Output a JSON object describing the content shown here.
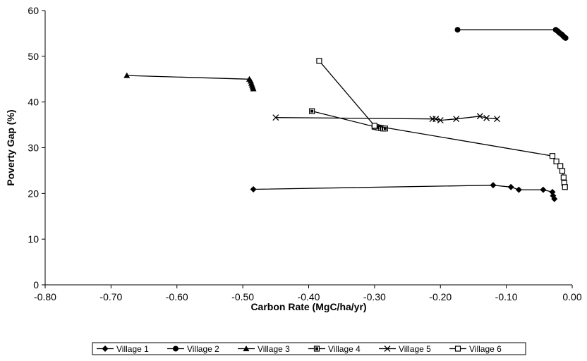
{
  "chart_data": {
    "type": "scatter",
    "title": "",
    "xlabel": "Carbon Rate (MgC/ha/yr)",
    "ylabel": "Poverty Gap (%)",
    "xlim": [
      -0.8,
      0.0
    ],
    "ylim": [
      0,
      60
    ],
    "xticks": [
      -0.8,
      -0.7,
      -0.6,
      -0.5,
      -0.4,
      -0.3,
      -0.2,
      -0.1,
      0.0
    ],
    "xtick_labels": [
      "-0.80",
      "-0.70",
      "-0.60",
      "-0.50",
      "-0.40",
      "-0.30",
      "-0.20",
      "-0.10",
      "0.00"
    ],
    "yticks": [
      0,
      10,
      20,
      30,
      40,
      50,
      60
    ],
    "ytick_labels": [
      "0",
      "10",
      "20",
      "30",
      "40",
      "50",
      "60"
    ],
    "grid": false,
    "legend_position": "bottom",
    "series": [
      {
        "name": "Village 1",
        "marker": "diamond",
        "points": [
          [
            -0.484,
            20.9
          ],
          [
            -0.12,
            21.8
          ],
          [
            -0.093,
            21.4
          ],
          [
            -0.081,
            20.8
          ],
          [
            -0.044,
            20.8
          ],
          [
            -0.03,
            20.3
          ],
          [
            -0.029,
            19.5
          ],
          [
            -0.027,
            18.8
          ]
        ]
      },
      {
        "name": "Village 2",
        "marker": "circle",
        "points": [
          [
            -0.174,
            55.8
          ],
          [
            -0.025,
            55.8
          ],
          [
            -0.022,
            55.5
          ],
          [
            -0.019,
            55.1
          ],
          [
            -0.016,
            54.8
          ],
          [
            -0.014,
            54.5
          ],
          [
            -0.012,
            54.2
          ],
          [
            -0.01,
            54.0
          ]
        ]
      },
      {
        "name": "Village 3",
        "marker": "triangle",
        "points": [
          [
            -0.676,
            45.8
          ],
          [
            -0.49,
            45.0
          ],
          [
            -0.488,
            44.6
          ],
          [
            -0.487,
            44.1
          ],
          [
            -0.486,
            43.7
          ],
          [
            -0.485,
            43.3
          ],
          [
            -0.484,
            42.9
          ]
        ]
      },
      {
        "name": "Village 4",
        "marker": "square",
        "points": [
          [
            -0.395,
            38.0
          ],
          [
            -0.3,
            34.6
          ],
          [
            -0.297,
            34.5
          ],
          [
            -0.294,
            34.4
          ],
          [
            -0.29,
            34.3
          ],
          [
            -0.287,
            34.2
          ],
          [
            -0.284,
            34.2
          ]
        ]
      },
      {
        "name": "Village 5",
        "marker": "x",
        "points": [
          [
            -0.45,
            36.6
          ],
          [
            -0.212,
            36.3
          ],
          [
            -0.207,
            36.3
          ],
          [
            -0.2,
            36.0
          ],
          [
            -0.176,
            36.3
          ],
          [
            -0.14,
            36.9
          ],
          [
            -0.13,
            36.5
          ],
          [
            -0.114,
            36.3
          ]
        ]
      },
      {
        "name": "Village 6",
        "marker": "open-square",
        "points": [
          [
            -0.384,
            49.0
          ],
          [
            -0.3,
            34.8
          ],
          [
            -0.03,
            28.2
          ],
          [
            -0.024,
            27.0
          ],
          [
            -0.018,
            26.0
          ],
          [
            -0.015,
            24.9
          ],
          [
            -0.013,
            23.5
          ],
          [
            -0.012,
            22.3
          ],
          [
            -0.011,
            21.4
          ]
        ]
      }
    ]
  }
}
